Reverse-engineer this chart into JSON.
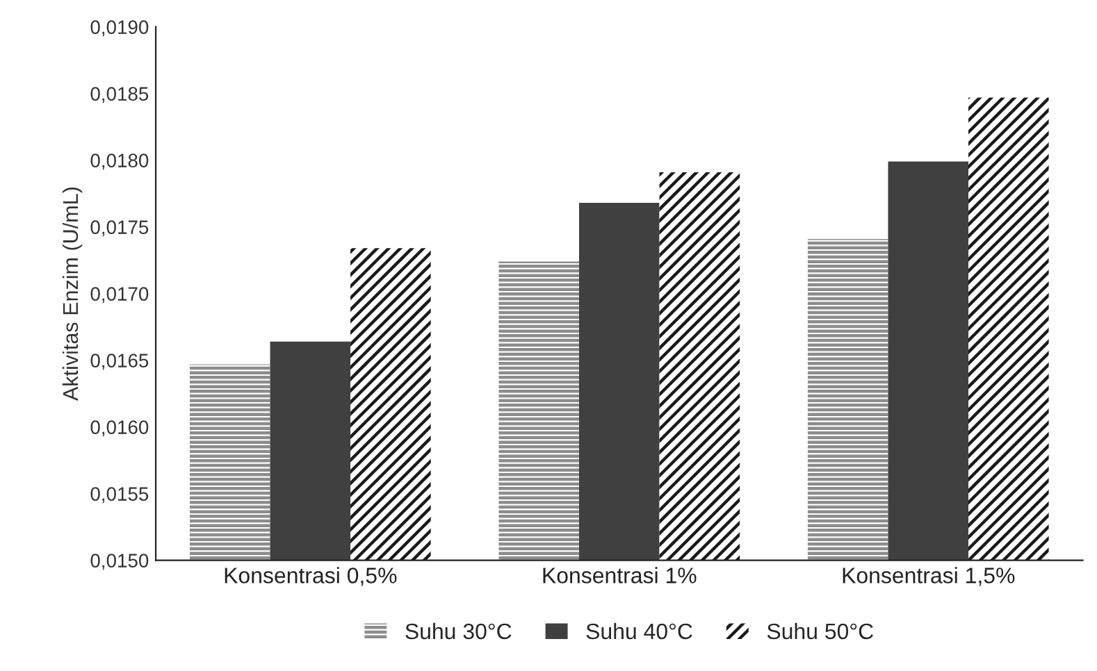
{
  "chart_data": {
    "type": "bar",
    "ylabel": "Aktivitas Enzim (U/mL)",
    "categories": [
      "Konsentrasi 0,5%",
      "Konsentrasi 1%",
      "Konsentrasi 1,5%"
    ],
    "series": [
      {
        "name": "Suhu 30°C",
        "color": "#8c8c8c",
        "values": [
          0.01647,
          0.01724,
          0.01741
        ]
      },
      {
        "name": "Suhu 40°C",
        "color": "#404040",
        "values": [
          0.01664,
          0.01768,
          0.01799
        ]
      },
      {
        "name": "Suhu 50°C",
        "color": "#1a1a1a",
        "values": [
          0.01734,
          0.01791,
          0.01847
        ]
      }
    ],
    "ylim": [
      0.015,
      0.019
    ],
    "yticks": [
      {
        "value": 0.015,
        "label": "0,0150"
      },
      {
        "value": 0.0155,
        "label": "0,0155"
      },
      {
        "value": 0.016,
        "label": "0,0160"
      },
      {
        "value": 0.0165,
        "label": "0,0165"
      },
      {
        "value": 0.017,
        "label": "0,0170"
      },
      {
        "value": 0.0175,
        "label": "0,0175"
      },
      {
        "value": 0.018,
        "label": "0,0180"
      },
      {
        "value": 0.0185,
        "label": "0,0185"
      },
      {
        "value": 0.019,
        "label": "0,0190"
      }
    ],
    "grid": false,
    "legend": "bottom"
  }
}
